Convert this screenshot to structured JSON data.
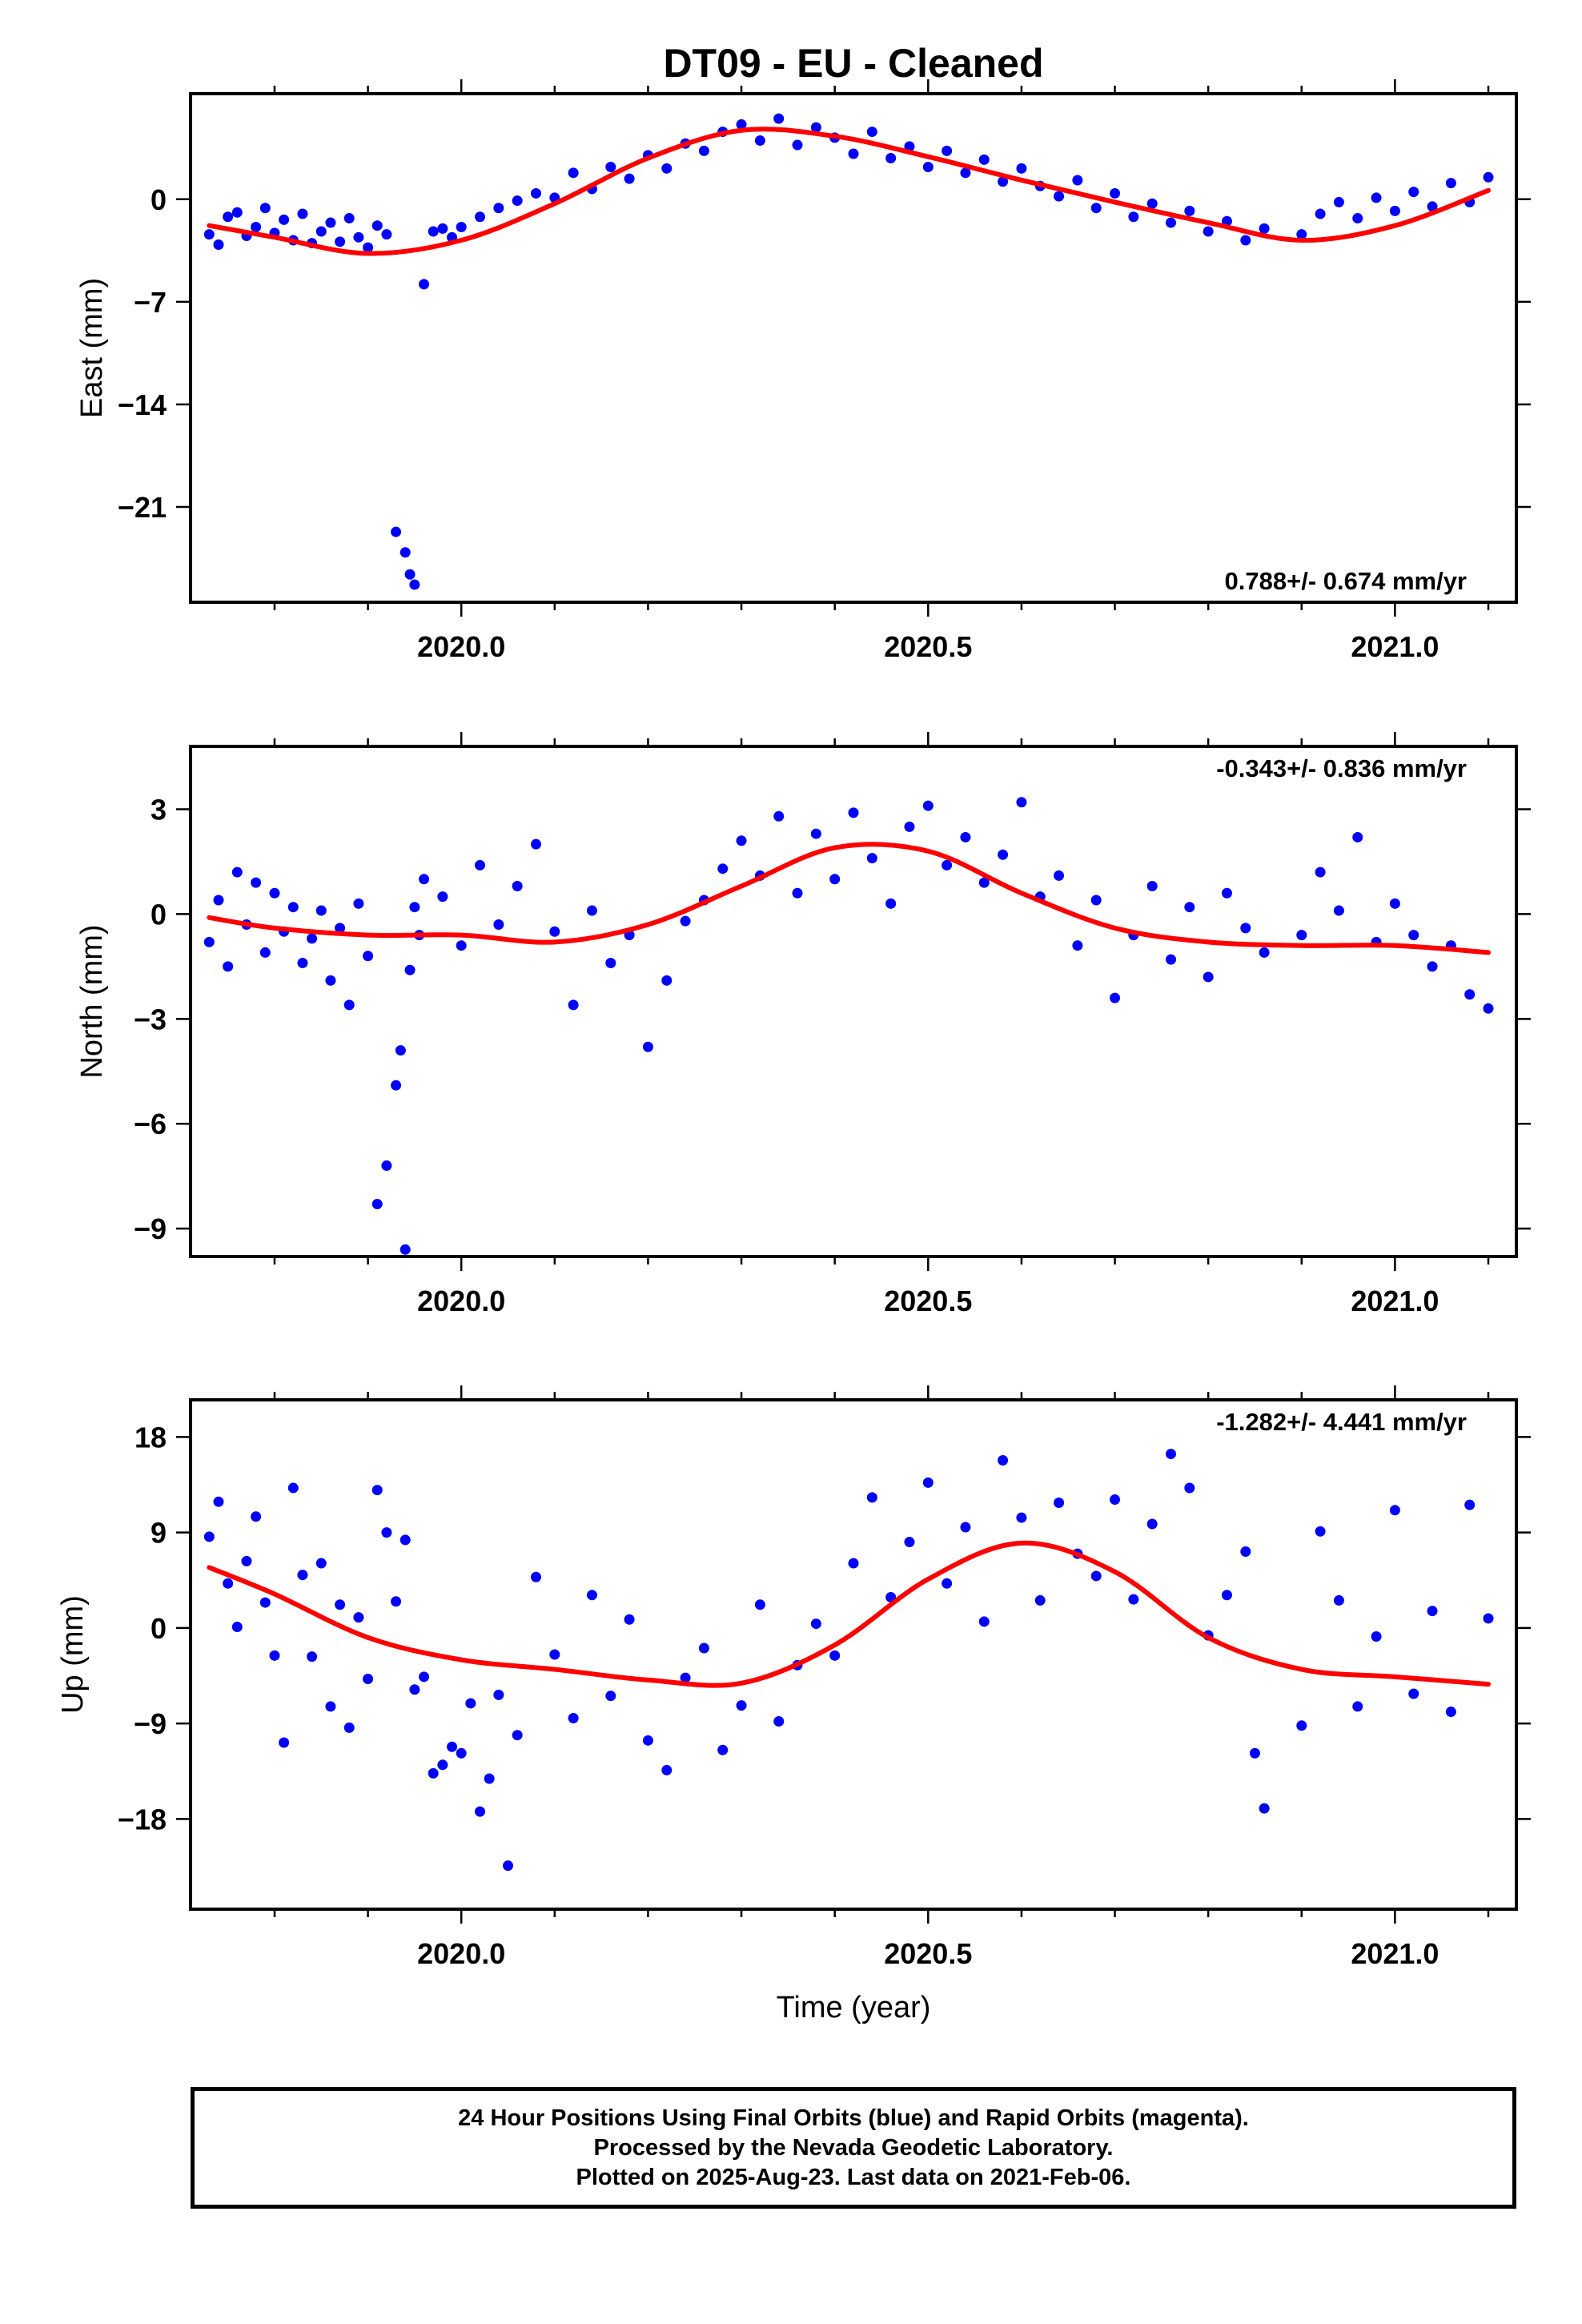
{
  "title": "DT09  - EU - Cleaned",
  "footer": {
    "line1": "24 Hour Positions Using Final Orbits (blue) and Rapid Orbits (magenta).",
    "line2": "Processed by the Nevada Geodetic Laboratory.",
    "line3": "Plotted on 2025-Aug-23. Last data on 2021-Feb-06."
  },
  "colors": {
    "points": "#0000ff",
    "fit": "#ff0000"
  },
  "chart_data": [
    {
      "type": "scatter",
      "ylabel": "East (mm)",
      "xlabel": "",
      "rate_label": "0.788+/- 0.674 mm/yr",
      "rate_position": "bottom-right",
      "xlim": [
        2019.71,
        2021.13
      ],
      "ylim": [
        -27.5,
        7.2
      ],
      "xticks": [
        2020.0,
        2020.5,
        2021.0
      ],
      "xtick_labels": [
        "2020.0",
        "2020.5",
        "2021.0"
      ],
      "yticks": [
        0,
        -7,
        -14,
        -21
      ],
      "ytick_labels": [
        "0",
        "−7",
        "−14",
        "−21"
      ],
      "fit": {
        "name": "",
        "x": [
          2019.73,
          2019.8,
          2019.9,
          2020.0,
          2020.1,
          2020.2,
          2020.3,
          2020.4,
          2020.5,
          2020.6,
          2020.7,
          2020.8,
          2020.9,
          2021.0,
          2021.1
        ],
        "y": [
          -1.8,
          -2.6,
          -3.7,
          -2.8,
          -0.3,
          2.8,
          4.7,
          4.3,
          2.9,
          1.3,
          -0.2,
          -1.6,
          -2.8,
          -1.8,
          0.6
        ]
      },
      "series": [
        {
          "name": "",
          "x": [
            2019.73,
            2019.74,
            2019.75,
            2019.76,
            2019.77,
            2019.78,
            2019.79,
            2019.8,
            2019.81,
            2019.82,
            2019.83,
            2019.84,
            2019.85,
            2019.86,
            2019.87,
            2019.88,
            2019.89,
            2019.9,
            2019.91,
            2019.92,
            2019.93,
            2019.94,
            2019.945,
            2019.95,
            2019.96,
            2019.97,
            2019.98,
            2019.99,
            2020.0,
            2020.02,
            2020.04,
            2020.06,
            2020.08,
            2020.1,
            2020.12,
            2020.14,
            2020.16,
            2020.18,
            2020.2,
            2020.22,
            2020.24,
            2020.26,
            2020.28,
            2020.3,
            2020.32,
            2020.34,
            2020.36,
            2020.38,
            2020.4,
            2020.42,
            2020.44,
            2020.46,
            2020.48,
            2020.5,
            2020.52,
            2020.54,
            2020.56,
            2020.58,
            2020.6,
            2020.62,
            2020.64,
            2020.66,
            2020.68,
            2020.7,
            2020.72,
            2020.74,
            2020.76,
            2020.78,
            2020.8,
            2020.82,
            2020.84,
            2020.86,
            2020.9,
            2020.92,
            2020.94,
            2020.96,
            2020.98,
            2021.0,
            2021.02,
            2021.04,
            2021.06,
            2021.08,
            2021.1
          ],
          "y": [
            -2.4,
            -3.1,
            -1.2,
            -0.9,
            -2.5,
            -1.9,
            -0.6,
            -2.3,
            -1.4,
            -2.8,
            -1.0,
            -3.0,
            -2.2,
            -1.6,
            -2.9,
            -1.3,
            -2.6,
            -3.3,
            -1.8,
            -2.4,
            -22.7,
            -24.1,
            -25.6,
            -26.3,
            -5.8,
            -2.2,
            -2.0,
            -2.6,
            -1.9,
            -1.2,
            -0.6,
            -0.1,
            0.4,
            0.1,
            1.8,
            0.7,
            2.2,
            1.4,
            3.0,
            2.1,
            3.8,
            3.3,
            4.6,
            5.1,
            4.0,
            5.5,
            3.7,
            4.9,
            4.2,
            3.1,
            4.6,
            2.8,
            3.6,
            2.2,
            3.3,
            1.8,
            2.7,
            1.2,
            2.1,
            0.9,
            0.2,
            1.3,
            -0.6,
            0.4,
            -1.2,
            -0.3,
            -1.6,
            -0.8,
            -2.2,
            -1.5,
            -2.8,
            -2.0,
            -2.4,
            -1.0,
            -0.2,
            -1.3,
            0.1,
            -0.8,
            0.5,
            -0.5,
            1.1,
            -0.2,
            1.5
          ]
        }
      ]
    },
    {
      "type": "scatter",
      "ylabel": "North (mm)",
      "xlabel": "",
      "rate_label": "-0.343+/- 0.836 mm/yr",
      "rate_position": "top-right",
      "xlim": [
        2019.71,
        2021.13
      ],
      "ylim": [
        -9.8,
        4.8
      ],
      "xticks": [
        2020.0,
        2020.5,
        2021.0
      ],
      "xtick_labels": [
        "2020.0",
        "2020.5",
        "2021.0"
      ],
      "yticks": [
        3,
        0,
        -3,
        -6,
        -9
      ],
      "ytick_labels": [
        "3",
        "0",
        "−3",
        "−6",
        "−9"
      ],
      "fit": {
        "name": "",
        "x": [
          2019.73,
          2019.8,
          2019.9,
          2020.0,
          2020.1,
          2020.2,
          2020.3,
          2020.4,
          2020.5,
          2020.6,
          2020.7,
          2020.8,
          2020.9,
          2021.0,
          2021.1
        ],
        "y": [
          -0.1,
          -0.4,
          -0.6,
          -0.6,
          -0.8,
          -0.3,
          0.8,
          1.9,
          1.8,
          0.6,
          -0.4,
          -0.8,
          -0.9,
          -0.9,
          -1.1
        ]
      },
      "series": [
        {
          "name": "",
          "x": [
            2019.73,
            2019.74,
            2019.75,
            2019.76,
            2019.77,
            2019.78,
            2019.79,
            2019.8,
            2019.81,
            2019.82,
            2019.83,
            2019.84,
            2019.85,
            2019.86,
            2019.87,
            2019.88,
            2019.89,
            2019.9,
            2019.91,
            2019.92,
            2019.93,
            2019.935,
            2019.94,
            2019.945,
            2019.95,
            2019.955,
            2019.96,
            2019.98,
            2020.0,
            2020.02,
            2020.04,
            2020.06,
            2020.08,
            2020.1,
            2020.12,
            2020.14,
            2020.16,
            2020.18,
            2020.2,
            2020.22,
            2020.24,
            2020.26,
            2020.28,
            2020.3,
            2020.32,
            2020.34,
            2020.36,
            2020.38,
            2020.4,
            2020.42,
            2020.44,
            2020.46,
            2020.48,
            2020.5,
            2020.52,
            2020.54,
            2020.56,
            2020.58,
            2020.6,
            2020.62,
            2020.64,
            2020.66,
            2020.68,
            2020.7,
            2020.72,
            2020.74,
            2020.76,
            2020.78,
            2020.8,
            2020.82,
            2020.84,
            2020.86,
            2020.9,
            2020.92,
            2020.94,
            2020.96,
            2020.98,
            2021.0,
            2021.02,
            2021.04,
            2021.06,
            2021.08,
            2021.1
          ],
          "y": [
            -0.8,
            0.4,
            -1.5,
            1.2,
            -0.3,
            0.9,
            -1.1,
            0.6,
            -0.5,
            0.2,
            -1.4,
            -0.7,
            0.1,
            -1.9,
            -0.4,
            -2.6,
            0.3,
            -1.2,
            -8.3,
            -7.2,
            -4.9,
            -3.9,
            -9.6,
            -1.6,
            0.2,
            -0.6,
            1.0,
            0.5,
            -0.9,
            1.4,
            -0.3,
            0.8,
            2.0,
            -0.5,
            -2.6,
            0.1,
            -1.4,
            -0.6,
            -3.8,
            -1.9,
            -0.2,
            0.4,
            1.3,
            2.1,
            1.1,
            2.8,
            0.6,
            2.3,
            1.0,
            2.9,
            1.6,
            0.3,
            2.5,
            3.1,
            1.4,
            2.2,
            0.9,
            1.7,
            3.2,
            0.5,
            1.1,
            -0.9,
            0.4,
            -2.4,
            -0.6,
            0.8,
            -1.3,
            0.2,
            -1.8,
            0.6,
            -0.4,
            -1.1,
            -0.6,
            1.2,
            0.1,
            2.2,
            -0.8,
            0.3,
            -0.6,
            -1.5,
            -0.9,
            -2.3,
            -2.7
          ]
        }
      ]
    },
    {
      "type": "scatter",
      "ylabel": "Up (mm)",
      "xlabel": "Time (year)",
      "rate_label": "-1.282+/- 4.441 mm/yr",
      "rate_position": "top-right",
      "xlim": [
        2019.71,
        2021.13
      ],
      "ylim": [
        -26.5,
        21.5
      ],
      "xticks": [
        2020.0,
        2020.5,
        2021.0
      ],
      "xtick_labels": [
        "2020.0",
        "2020.5",
        "2021.0"
      ],
      "yticks": [
        18,
        9,
        0,
        -9,
        -18
      ],
      "ytick_labels": [
        "18",
        "9",
        "0",
        "−9",
        "−18"
      ],
      "fit": {
        "name": "",
        "x": [
          2019.73,
          2019.8,
          2019.9,
          2020.0,
          2020.1,
          2020.2,
          2020.3,
          2020.4,
          2020.5,
          2020.6,
          2020.7,
          2020.8,
          2020.9,
          2021.0,
          2021.1
        ],
        "y": [
          5.7,
          3.2,
          -0.9,
          -3.0,
          -3.9,
          -4.9,
          -5.2,
          -1.6,
          4.6,
          8.0,
          5.3,
          -0.9,
          -3.9,
          -4.6,
          -5.3
        ]
      },
      "series": [
        {
          "name": "",
          "x": [
            2019.73,
            2019.74,
            2019.75,
            2019.76,
            2019.77,
            2019.78,
            2019.79,
            2019.8,
            2019.81,
            2019.82,
            2019.83,
            2019.84,
            2019.85,
            2019.86,
            2019.87,
            2019.88,
            2019.89,
            2019.9,
            2019.91,
            2019.92,
            2019.93,
            2019.94,
            2019.95,
            2019.96,
            2019.97,
            2019.98,
            2019.99,
            2020.0,
            2020.01,
            2020.02,
            2020.03,
            2020.04,
            2020.05,
            2020.06,
            2020.08,
            2020.1,
            2020.12,
            2020.14,
            2020.16,
            2020.18,
            2020.2,
            2020.22,
            2020.24,
            2020.26,
            2020.28,
            2020.3,
            2020.32,
            2020.34,
            2020.36,
            2020.38,
            2020.4,
            2020.42,
            2020.44,
            2020.46,
            2020.48,
            2020.5,
            2020.52,
            2020.54,
            2020.56,
            2020.58,
            2020.6,
            2020.62,
            2020.64,
            2020.66,
            2020.68,
            2020.7,
            2020.72,
            2020.74,
            2020.76,
            2020.78,
            2020.8,
            2020.82,
            2020.84,
            2020.85,
            2020.86,
            2020.9,
            2020.92,
            2020.94,
            2020.96,
            2020.98,
            2021.0,
            2021.02,
            2021.04,
            2021.06,
            2021.08,
            2021.1
          ],
          "y": [
            8.6,
            11.9,
            4.2,
            0.1,
            6.3,
            10.5,
            2.4,
            -2.6,
            -10.8,
            13.2,
            5.0,
            -2.7,
            6.1,
            -7.4,
            2.2,
            -9.4,
            1.0,
            -4.8,
            13.0,
            9.0,
            2.5,
            8.3,
            -5.8,
            -4.6,
            -13.7,
            -12.9,
            -11.2,
            -11.8,
            -7.1,
            -17.3,
            -14.2,
            -6.3,
            -22.4,
            -10.1,
            4.8,
            -2.5,
            -8.5,
            3.1,
            -6.4,
            0.8,
            -10.6,
            -13.4,
            -4.7,
            -1.9,
            -11.5,
            -7.3,
            2.2,
            -8.8,
            -3.5,
            0.4,
            -2.6,
            6.1,
            12.3,
            2.9,
            8.1,
            13.7,
            4.2,
            9.5,
            0.6,
            15.8,
            10.4,
            2.6,
            11.8,
            7.0,
            4.9,
            12.1,
            2.7,
            9.8,
            16.4,
            13.2,
            -0.7,
            3.1,
            7.2,
            -11.8,
            -17.0,
            -9.2,
            9.1,
            2.6,
            -7.4,
            -0.8,
            11.1,
            -6.2,
            1.6,
            -7.9,
            11.6,
            0.9
          ]
        }
      ]
    }
  ]
}
